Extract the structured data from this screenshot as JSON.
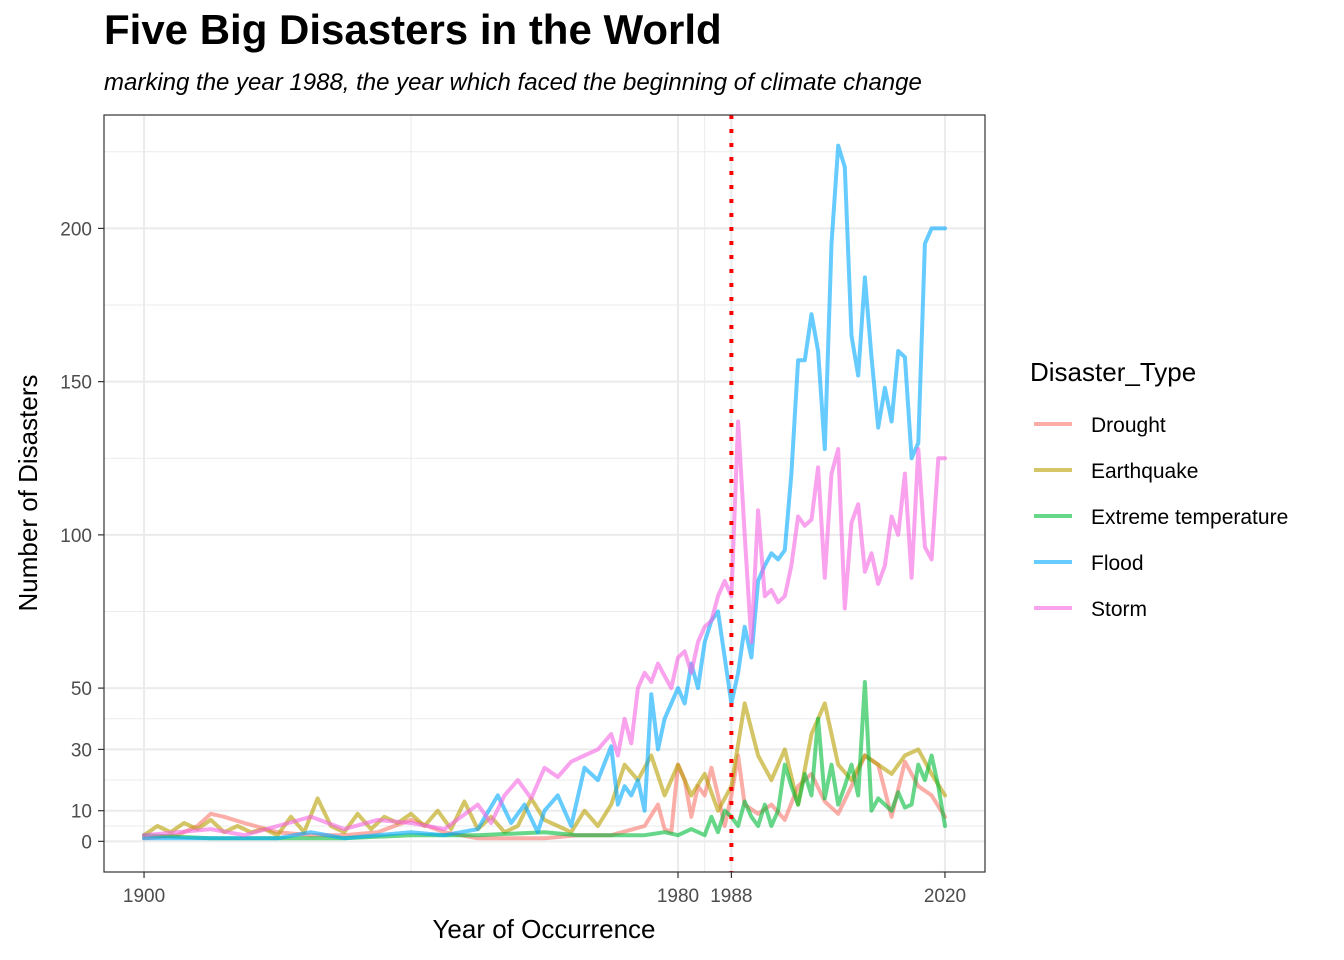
{
  "chart_data": {
    "type": "line",
    "title": "Five Big Disasters in the World",
    "subtitle": "marking the year 1988, the year which faced the beginning of climate change",
    "xlabel": "Year of Occurrence",
    "ylabel": "Number of Disasters",
    "xlim": [
      1894,
      2026
    ],
    "ylim": [
      -10,
      237
    ],
    "x_ticks": [
      1900,
      1980,
      1988,
      2020
    ],
    "y_ticks": [
      0,
      10,
      30,
      50,
      100,
      150,
      200
    ],
    "grid": true,
    "legend_title": "Disaster_Type",
    "legend_position": "right",
    "annotation": {
      "type": "vline",
      "x": 1988,
      "style": "dotted",
      "color": "#ff0000"
    },
    "series": [
      {
        "name": "Drought",
        "color": "#F8766D",
        "x": [
          1900,
          1905,
          1908,
          1910,
          1912,
          1915,
          1920,
          1925,
          1930,
          1935,
          1940,
          1945,
          1950,
          1955,
          1960,
          1965,
          1970,
          1975,
          1977,
          1978,
          1979,
          1980,
          1981,
          1982,
          1983,
          1984,
          1985,
          1986,
          1987,
          1988,
          1989,
          1990,
          1992,
          1994,
          1996,
          1998,
          2000,
          2002,
          2004,
          2006,
          2008,
          2010,
          2012,
          2014,
          2016,
          2018,
          2020
        ],
        "y": [
          1,
          2,
          5,
          9,
          8,
          6,
          3,
          2,
          2,
          3,
          7,
          3,
          1,
          1,
          1,
          2,
          2,
          5,
          12,
          4,
          3,
          25,
          20,
          8,
          18,
          15,
          24,
          15,
          5,
          15,
          28,
          12,
          9,
          12,
          7,
          18,
          22,
          13,
          9,
          18,
          28,
          25,
          8,
          26,
          18,
          15,
          8
        ]
      },
      {
        "name": "Earthquake",
        "color": "#B79F00",
        "x": [
          1900,
          1902,
          1904,
          1906,
          1908,
          1910,
          1912,
          1914,
          1916,
          1918,
          1920,
          1922,
          1924,
          1926,
          1928,
          1930,
          1932,
          1934,
          1936,
          1938,
          1940,
          1942,
          1944,
          1946,
          1948,
          1950,
          1952,
          1954,
          1956,
          1958,
          1960,
          1962,
          1964,
          1966,
          1968,
          1970,
          1972,
          1974,
          1976,
          1978,
          1980,
          1982,
          1984,
          1986,
          1988,
          1990,
          1992,
          1994,
          1996,
          1998,
          2000,
          2002,
          2004,
          2006,
          2008,
          2010,
          2012,
          2014,
          2016,
          2018,
          2020
        ],
        "y": [
          2,
          5,
          3,
          6,
          4,
          7,
          3,
          5,
          3,
          4,
          2,
          8,
          3,
          14,
          5,
          3,
          9,
          4,
          8,
          6,
          9,
          5,
          10,
          4,
          13,
          4,
          8,
          3,
          5,
          14,
          7,
          5,
          3,
          10,
          5,
          12,
          25,
          20,
          28,
          15,
          25,
          15,
          22,
          10,
          18,
          45,
          28,
          20,
          30,
          12,
          35,
          45,
          25,
          20,
          28,
          25,
          22,
          28,
          30,
          22,
          15
        ]
      },
      {
        "name": "Extreme temperature",
        "color": "#00BA38",
        "x": [
          1900,
          1910,
          1920,
          1930,
          1940,
          1950,
          1960,
          1965,
          1970,
          1975,
          1978,
          1980,
          1982,
          1984,
          1985,
          1986,
          1987,
          1988,
          1989,
          1990,
          1991,
          1992,
          1993,
          1994,
          1995,
          1996,
          1997,
          1998,
          1999,
          2000,
          2001,
          2002,
          2003,
          2004,
          2005,
          2006,
          2007,
          2008,
          2009,
          2010,
          2011,
          2012,
          2013,
          2014,
          2015,
          2016,
          2017,
          2018,
          2019,
          2020
        ],
        "y": [
          2,
          1,
          1,
          1,
          2,
          2,
          3,
          2,
          2,
          2,
          3,
          2,
          4,
          2,
          8,
          3,
          10,
          8,
          5,
          13,
          8,
          5,
          12,
          5,
          10,
          25,
          18,
          12,
          22,
          15,
          40,
          14,
          25,
          12,
          18,
          25,
          15,
          52,
          10,
          14,
          12,
          10,
          16,
          11,
          12,
          25,
          20,
          28,
          18,
          5
        ]
      },
      {
        "name": "Flood",
        "color": "#00A9FF",
        "x": [
          1900,
          1910,
          1920,
          1925,
          1930,
          1935,
          1940,
          1945,
          1950,
          1953,
          1955,
          1957,
          1959,
          1960,
          1962,
          1964,
          1966,
          1968,
          1970,
          1971,
          1972,
          1973,
          1974,
          1975,
          1976,
          1977,
          1978,
          1979,
          1980,
          1981,
          1982,
          1983,
          1984,
          1985,
          1986,
          1987,
          1988,
          1989,
          1990,
          1991,
          1992,
          1993,
          1994,
          1995,
          1996,
          1997,
          1998,
          1999,
          2000,
          2001,
          2002,
          2003,
          2004,
          2005,
          2006,
          2007,
          2008,
          2009,
          2010,
          2011,
          2012,
          2013,
          2014,
          2015,
          2016,
          2017,
          2018,
          2019,
          2020
        ],
        "y": [
          1,
          1,
          1,
          3,
          1,
          2,
          3,
          2,
          4,
          15,
          6,
          12,
          3,
          10,
          15,
          5,
          24,
          20,
          31,
          12,
          18,
          15,
          20,
          10,
          48,
          30,
          40,
          45,
          50,
          45,
          58,
          50,
          65,
          72,
          75,
          60,
          45,
          55,
          70,
          60,
          85,
          90,
          94,
          92,
          95,
          120,
          157,
          157,
          172,
          160,
          128,
          195,
          227,
          220,
          165,
          152,
          184,
          158,
          135,
          148,
          137,
          160,
          158,
          125,
          130,
          195,
          200,
          200,
          200
        ],
        "y_note": "series ends at 2020 value 200"
      },
      {
        "name": "Storm",
        "color": "#F564E3",
        "x": [
          1900,
          1905,
          1910,
          1915,
          1920,
          1925,
          1930,
          1935,
          1940,
          1945,
          1950,
          1952,
          1954,
          1956,
          1958,
          1960,
          1962,
          1964,
          1966,
          1968,
          1970,
          1971,
          1972,
          1973,
          1974,
          1975,
          1976,
          1977,
          1978,
          1979,
          1980,
          1981,
          1982,
          1983,
          1984,
          1985,
          1986,
          1987,
          1988,
          1989,
          1990,
          1991,
          1992,
          1993,
          1994,
          1995,
          1996,
          1997,
          1998,
          1999,
          2000,
          2001,
          2002,
          2003,
          2004,
          2005,
          2006,
          2007,
          2008,
          2009,
          2010,
          2011,
          2012,
          2013,
          2014,
          2015,
          2016,
          2017,
          2018,
          2019,
          2020
        ],
        "y": [
          2,
          3,
          4,
          2,
          5,
          8,
          4,
          7,
          6,
          4,
          12,
          6,
          15,
          20,
          14,
          24,
          21,
          26,
          28,
          30,
          35,
          28,
          40,
          32,
          50,
          55,
          52,
          58,
          54,
          50,
          60,
          62,
          55,
          65,
          70,
          72,
          80,
          85,
          80,
          137,
          100,
          65,
          108,
          80,
          82,
          78,
          80,
          90,
          106,
          103,
          105,
          122,
          86,
          120,
          128,
          76,
          104,
          110,
          88,
          94,
          84,
          90,
          106,
          100,
          120,
          86,
          128,
          96,
          92,
          125,
          125
        ]
      }
    ]
  }
}
